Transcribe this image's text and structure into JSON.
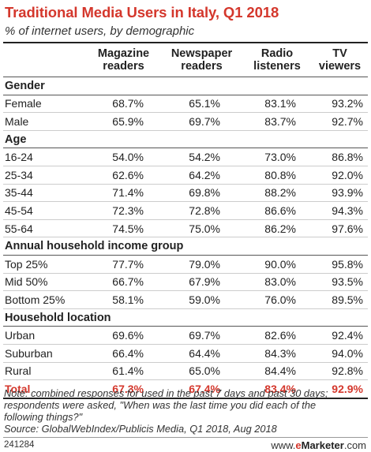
{
  "title": "Traditional Media Users in Italy, Q1 2018",
  "subtitle": "% of internet users, by demographic",
  "chart_data": {
    "type": "table",
    "columns": [
      "Magazine readers",
      "Newspaper readers",
      "Radio listeners",
      "TV viewers"
    ],
    "groups": [
      {
        "name": "Gender",
        "rows": [
          {
            "label": "Female",
            "values": [
              "68.7%",
              "65.1%",
              "83.1%",
              "93.2%"
            ]
          },
          {
            "label": "Male",
            "values": [
              "65.9%",
              "69.7%",
              "83.7%",
              "92.7%"
            ]
          }
        ]
      },
      {
        "name": "Age",
        "rows": [
          {
            "label": "16-24",
            "values": [
              "54.0%",
              "54.2%",
              "73.0%",
              "86.8%"
            ]
          },
          {
            "label": "25-34",
            "values": [
              "62.6%",
              "64.2%",
              "80.8%",
              "92.0%"
            ]
          },
          {
            "label": "35-44",
            "values": [
              "71.4%",
              "69.8%",
              "88.2%",
              "93.9%"
            ]
          },
          {
            "label": "45-54",
            "values": [
              "72.3%",
              "72.8%",
              "86.6%",
              "94.3%"
            ]
          },
          {
            "label": "55-64",
            "values": [
              "74.5%",
              "75.0%",
              "86.2%",
              "97.6%"
            ]
          }
        ]
      },
      {
        "name": "Annual household income group",
        "rows": [
          {
            "label": "Top 25%",
            "values": [
              "77.7%",
              "79.0%",
              "90.0%",
              "95.8%"
            ]
          },
          {
            "label": "Mid 50%",
            "values": [
              "66.7%",
              "67.9%",
              "83.0%",
              "93.5%"
            ]
          },
          {
            "label": "Bottom 25%",
            "values": [
              "58.1%",
              "59.0%",
              "76.0%",
              "89.5%"
            ]
          }
        ]
      },
      {
        "name": "Household location",
        "rows": [
          {
            "label": "Urban",
            "values": [
              "69.6%",
              "69.7%",
              "82.6%",
              "92.4%"
            ]
          },
          {
            "label": "Suburban",
            "values": [
              "66.4%",
              "64.4%",
              "84.3%",
              "94.0%"
            ]
          },
          {
            "label": "Rural",
            "values": [
              "61.4%",
              "65.0%",
              "84.4%",
              "92.8%"
            ]
          }
        ]
      }
    ],
    "total": {
      "label": "Total",
      "values": [
        "67.3%",
        "67.4%",
        "83.4%",
        "92.9%"
      ]
    }
  },
  "notes": [
    "Note: combined responses for used in the past 7 days and past 30 days;",
    "respondents were asked, \"When was the last time you did each of the",
    "following things?\"",
    "Source: GlobalWebIndex/Publicis Media, Q1 2018, Aug 2018"
  ],
  "footer": {
    "id": "241284",
    "brand_prefix": "www.",
    "brand_e": "e",
    "brand_name": "Marketer",
    "brand_suffix": ".com"
  },
  "colors": {
    "accent": "#d4372c",
    "text": "#222222"
  }
}
